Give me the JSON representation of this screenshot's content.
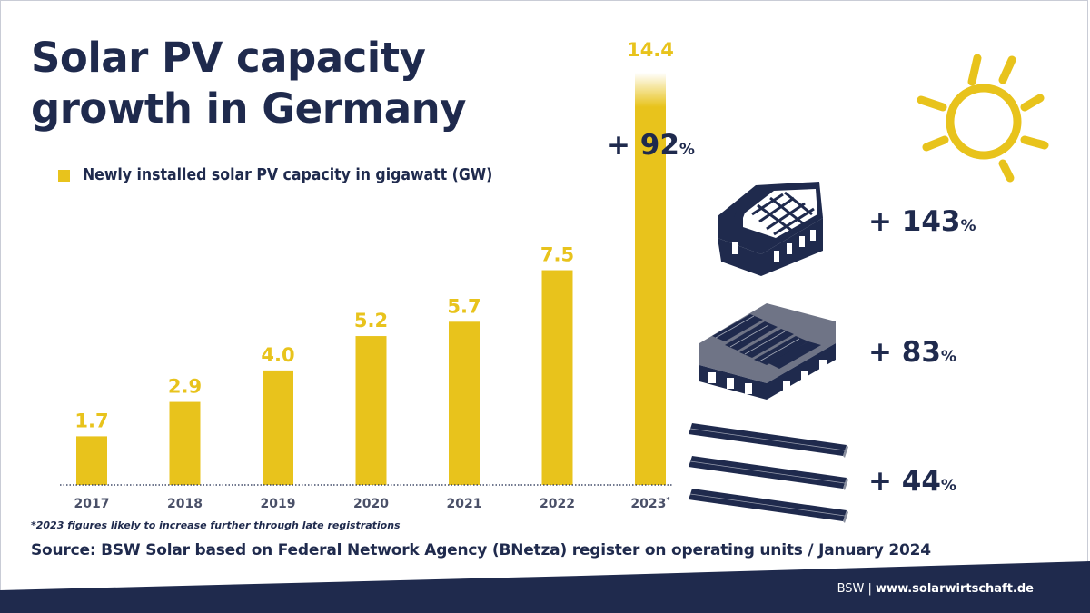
{
  "title": "Solar PV capacity growth in Germany",
  "legend_label": "Newly installed solar PV capacity in gigawatt (GW)",
  "chart_data": {
    "type": "bar",
    "title": "Solar PV capacity growth in Germany",
    "categories": [
      "2017",
      "2018",
      "2019",
      "2020",
      "2021",
      "2022",
      "2023*"
    ],
    "series": [
      {
        "name": "Newly installed solar PV capacity in gigawatt (GW)",
        "values": [
          1.7,
          2.9,
          4.0,
          5.2,
          5.7,
          7.5,
          14.4
        ]
      }
    ],
    "data_labels": [
      "1.7",
      "2.9",
      "4.0",
      "5.2",
      "5.7",
      "7.5",
      "14.4"
    ],
    "ylim": [
      0,
      14.4
    ],
    "grid": false,
    "legend_position": "top-left",
    "annotations": [
      {
        "label": "+ 92",
        "unit": "%",
        "target": "2023*"
      }
    ],
    "colors": {
      "bar": "#e8c31c",
      "text": "#1f2a4d",
      "label": "#e8c31c"
    }
  },
  "segments": [
    {
      "name": "residential-rooftop",
      "icon": "house-solar-icon",
      "value": "+ 143",
      "unit": "%"
    },
    {
      "name": "commercial-rooftop",
      "icon": "warehouse-solar-icon",
      "value": "+ 83",
      "unit": "%"
    },
    {
      "name": "ground-mounted",
      "icon": "solar-panel-rows-icon",
      "value": "+ 44",
      "unit": "%"
    }
  ],
  "sun_icon": "sun-icon",
  "footnote": "*2023 figures likely to increase further through late registrations",
  "source": "Source: BSW Solar based on Federal Network Agency (BNetza) register on operating units / January 2024",
  "footer": {
    "brand": "BSW |",
    "url": "www.solarwirtschaft.de"
  },
  "colors": {
    "navy": "#1f2a4d",
    "yellow": "#e8c31c",
    "footer_band": "#1f2a4d"
  }
}
